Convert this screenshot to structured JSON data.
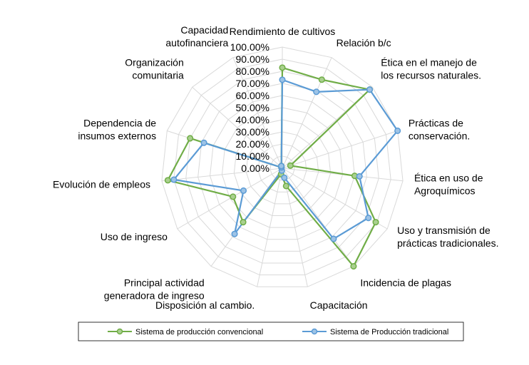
{
  "chart_data": {
    "type": "radar",
    "axes": [
      "Rendimiento de cultivos",
      "Relación b/c",
      "Ética en el manejo de los recursos naturales.",
      "Prácticas de conservación.",
      "Ética en uso de Agroquímicos",
      "Uso y transmisión de prácticas tradicionales.",
      "Incidencia de plagas",
      "Capacitación",
      "Disposición al cambio.",
      "Principal actividad generadora de ingreso",
      "Uso de ingreso",
      "Evolución de empleos",
      "Dependencia de insumos externos",
      "Organización comunitaria",
      "Capacidad autofinanciera"
    ],
    "axis_label_lines": [
      [
        "Rendimiento de cultivos"
      ],
      [
        "Relación b/c"
      ],
      [
        "Ética en el manejo de",
        "los recursos naturales."
      ],
      [
        "Prácticas de",
        "conservación."
      ],
      [
        "Ética en uso de",
        "Agroquímicos"
      ],
      [
        "Uso y transmisión de",
        "prácticas tradicionales."
      ],
      [
        "Incidencia de plagas"
      ],
      [
        "Capacitación"
      ],
      [
        "Disposición al cambio."
      ],
      [
        "Principal actividad",
        "generadora de ingreso"
      ],
      [
        "Uso de ingreso"
      ],
      [
        "Evolución de empleos"
      ],
      [
        "Dependencia de",
        "insumos externos"
      ],
      [
        "Organización",
        "comunitaria"
      ],
      [
        "Capacidad",
        "autofinanciera"
      ]
    ],
    "radial_ticks": [
      "0.00%",
      "10.00%",
      "20.00%",
      "30.00%",
      "40.00%",
      "50.00%",
      "60.00%",
      "70.00%",
      "80.00%",
      "90.00%",
      "100.00%"
    ],
    "rmax": 100,
    "series": [
      {
        "name": "Sistema de producción convencional",
        "color": "#70AD47",
        "values": [
          83,
          80,
          97,
          7,
          60,
          89,
          100,
          15,
          5,
          55,
          47,
          95,
          80,
          1,
          2
        ]
      },
      {
        "name": "Sistema de Producción tradicional",
        "color": "#5B9BD5",
        "values": [
          73,
          69,
          97,
          100,
          64,
          82,
          72,
          8,
          2,
          67,
          37,
          90,
          68,
          1,
          2
        ]
      }
    ],
    "legend_position": "bottom"
  }
}
